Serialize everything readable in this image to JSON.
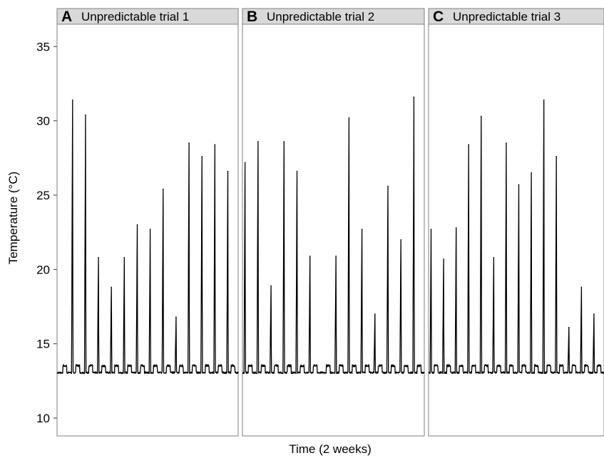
{
  "chart_data": {
    "type": "line",
    "xlabel": "Time (2 weeks)",
    "ylabel": "Temperature (°C)",
    "ylim": [
      8.8,
      36.5
    ],
    "yticks": [
      10,
      15,
      20,
      25,
      30,
      35
    ],
    "x_range": [
      0,
      14
    ],
    "grid": false,
    "baseline_temperature": 13,
    "panels": [
      {
        "letter": "A",
        "title": "Unpredictable trial 1",
        "peaks": [
          {
            "day": 1.2,
            "value": 31.4
          },
          {
            "day": 2.2,
            "value": 30.4
          },
          {
            "day": 3.2,
            "value": 20.8
          },
          {
            "day": 4.2,
            "value": 18.8
          },
          {
            "day": 5.2,
            "value": 20.8
          },
          {
            "day": 6.2,
            "value": 23.0
          },
          {
            "day": 7.2,
            "value": 22.7
          },
          {
            "day": 8.2,
            "value": 25.4
          },
          {
            "day": 9.2,
            "value": 16.8
          },
          {
            "day": 10.2,
            "value": 28.5
          },
          {
            "day": 11.2,
            "value": 27.6
          },
          {
            "day": 12.2,
            "value": 28.4
          },
          {
            "day": 13.2,
            "value": 26.6
          }
        ]
      },
      {
        "letter": "B",
        "title": "Unpredictable trial 2",
        "peaks": [
          {
            "day": 0.2,
            "value": 27.2
          },
          {
            "day": 1.2,
            "value": 28.6
          },
          {
            "day": 2.2,
            "value": 18.9
          },
          {
            "day": 3.2,
            "value": 28.6
          },
          {
            "day": 4.2,
            "value": 26.6
          },
          {
            "day": 5.2,
            "value": 20.9
          },
          {
            "day": 7.2,
            "value": 20.9
          },
          {
            "day": 8.2,
            "value": 30.2
          },
          {
            "day": 9.2,
            "value": 22.7
          },
          {
            "day": 10.2,
            "value": 17.0
          },
          {
            "day": 11.2,
            "value": 25.6
          },
          {
            "day": 12.2,
            "value": 22.0
          },
          {
            "day": 13.2,
            "value": 31.6
          }
        ]
      },
      {
        "letter": "C",
        "title": "Unpredictable trial 3",
        "peaks": [
          {
            "day": 0.2,
            "value": 22.7
          },
          {
            "day": 1.2,
            "value": 20.7
          },
          {
            "day": 2.2,
            "value": 22.8
          },
          {
            "day": 3.2,
            "value": 28.4
          },
          {
            "day": 4.2,
            "value": 30.3
          },
          {
            "day": 5.2,
            "value": 20.8
          },
          {
            "day": 6.2,
            "value": 28.5
          },
          {
            "day": 7.2,
            "value": 25.7
          },
          {
            "day": 8.2,
            "value": 26.5
          },
          {
            "day": 9.2,
            "value": 31.4
          },
          {
            "day": 10.2,
            "value": 27.6
          },
          {
            "day": 11.2,
            "value": 16.1
          },
          {
            "day": 12.2,
            "value": 18.8
          },
          {
            "day": 13.2,
            "value": 17.0
          }
        ]
      }
    ]
  }
}
